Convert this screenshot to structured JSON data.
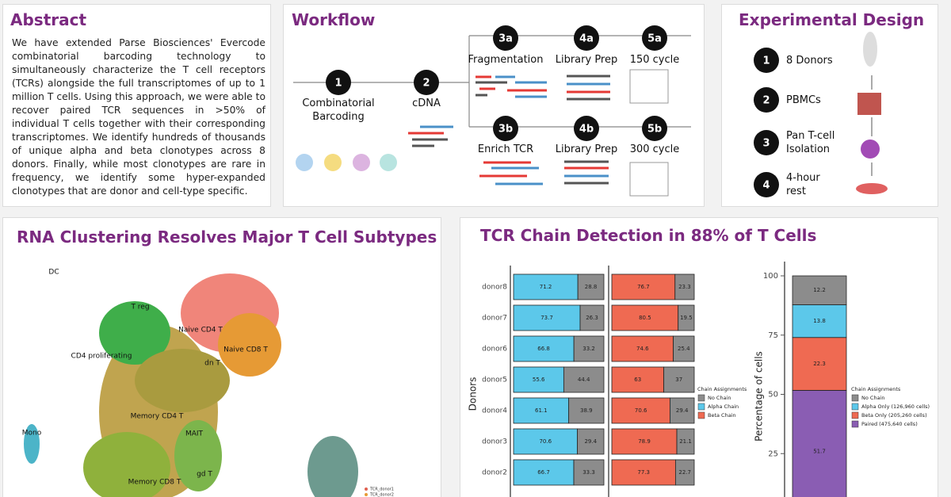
{
  "abstract": {
    "title": "Abstract",
    "text": "We have extended Parse Biosciences' Evercode combinatorial barcoding technology to simultaneously characterize the T cell receptors (TCRs) alongside the full transcriptomes of up to 1 million T cells. Using this approach, we were able to recover paired TCR sequences in >50% of individual T cells together with their corresponding transcriptomes. We identify hundreds of thousands of unique alpha and beta clonotypes across 8 donors. Finally, while most clonotypes are rare in frequency, we identify some hyper-expanded clonotypes that are donor and cell-type specific."
  },
  "workflow": {
    "title": "Workflow",
    "steps": [
      {
        "number": "1",
        "label": "Combinatorial Barcoding"
      },
      {
        "number": "2",
        "label": "cDNA"
      },
      {
        "number": "3a",
        "label": "Fragmentation"
      },
      {
        "number": "4a",
        "label": "Library Prep"
      },
      {
        "number": "5a",
        "label": "150 cycle"
      },
      {
        "number": "3b",
        "label": "Enrich TCR"
      },
      {
        "number": "4b",
        "label": "Library Prep"
      },
      {
        "number": "5b",
        "label": "300 cycle"
      }
    ]
  },
  "design": {
    "title": "Experimental  Design",
    "steps": [
      {
        "number": "1",
        "label": "8 Donors"
      },
      {
        "number": "2",
        "label": "PBMCs"
      },
      {
        "number": "3",
        "label": "Pan T-cell Isolation"
      },
      {
        "number": "4",
        "label": "4-hour rest"
      }
    ]
  },
  "rna_clustering": {
    "title": "RNA Clustering Resolves Major T Cell Subtypes",
    "clusters": [
      "DC",
      "T reg",
      "Naive CD4 T",
      "Naive CD8 T",
      "CD4 proliferating",
      "dn T",
      "Memory CD4 T",
      "MAIT",
      "Mono",
      "Memory CD8 T",
      "gd T"
    ],
    "legend": [
      "TCR_donor1",
      "TCR_donor2"
    ]
  },
  "tcr_title": "TCR Chain Detection in 88% of T Cells",
  "chart_data": [
    {
      "type": "bar",
      "orientation": "horizontal",
      "stacked": true,
      "y_label": "Donors",
      "categories": [
        "donor8",
        "donor7",
        "donor6",
        "donor5",
        "donor4",
        "donor3",
        "donor2"
      ],
      "xlim": [
        0,
        100
      ],
      "series": [
        {
          "name": "Alpha Chain",
          "color": "#5cc8ea",
          "values": [
            71.2,
            73.7,
            66.8,
            55.6,
            61.1,
            70.6,
            66.7
          ]
        },
        {
          "name": "No Chain",
          "color": "#8c8c8c",
          "values": [
            28.8,
            26.3,
            33.2,
            44.4,
            38.9,
            29.4,
            33.3
          ]
        }
      ]
    },
    {
      "type": "bar",
      "orientation": "horizontal",
      "stacked": true,
      "legend_title": "Chain Assignments",
      "xlim": [
        0,
        100
      ],
      "series": [
        {
          "name": "Beta Chain",
          "color": "#ef6a52",
          "values": [
            76.7,
            80.5,
            74.6,
            63,
            70.6,
            78.9,
            77.3
          ]
        },
        {
          "color": "#8c8c8c",
          "values": [
            23.3,
            19.5,
            25.4,
            37,
            29.4,
            21.1,
            22.7
          ]
        }
      ]
    },
    {
      "type": "bar",
      "orientation": "vertical",
      "stacked": true,
      "y_label": "Percentage of cells",
      "legend_title": "Chain Assignments",
      "ylim": [
        0,
        100
      ],
      "yticks": [
        25,
        50,
        75,
        100
      ],
      "series": [
        {
          "name": "No Chain",
          "color": "#8c8c8c",
          "values": [
            12.2
          ]
        },
        {
          "name": "Alpha Only (126,960 cells)",
          "color": "#5cc8ea",
          "values": [
            13.8
          ]
        },
        {
          "name": "Beta Only (205,260 cells)",
          "color": "#ef6a52",
          "values": [
            22.3
          ]
        },
        {
          "name": "Paired (475,640 cells)",
          "color": "#8a5db3",
          "values": [
            51.7
          ]
        }
      ]
    }
  ]
}
